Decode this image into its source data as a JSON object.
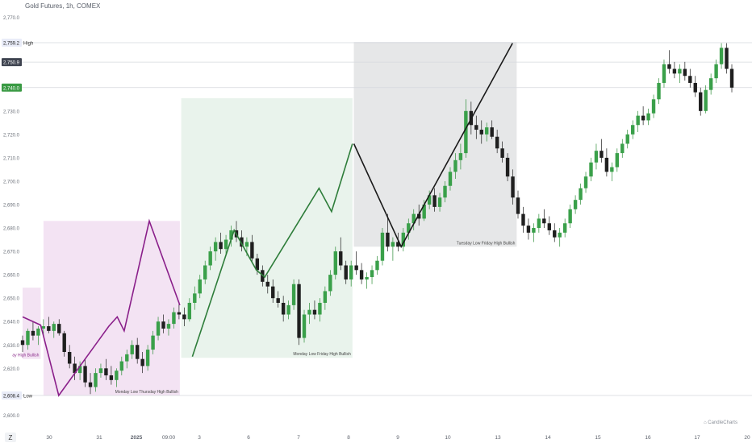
{
  "chart_data": {
    "type": "candlestick",
    "title": "Gold Futures, 1h, COMEX",
    "ylim": [
      2597,
      2773
    ],
    "y_ticks": [
      "2,600.0",
      "2,620.0",
      "2,630.0",
      "2,640.0",
      "2,650.0",
      "2,660.0",
      "2,670.0",
      "2,680.0",
      "2,690.0",
      "2,700.0",
      "2,710.0",
      "2,720.0",
      "2,730.0",
      "2,740.0",
      "2,770.0"
    ],
    "x_ticks": [
      "30",
      "31",
      "2025",
      "09:00",
      "3",
      "6",
      "7",
      "8",
      "9",
      "10",
      "13",
      "14",
      "15",
      "16",
      "17",
      "20"
    ],
    "price_markers": [
      {
        "value": 2759.2,
        "label": "2,759.2",
        "tag": "High",
        "bg": "#e9ecf8",
        "fg": "#222222"
      },
      {
        "value": 2750.9,
        "label": "2,750.9",
        "tag": "",
        "bg": "#3f4450",
        "fg": "#ffffff"
      },
      {
        "value": 2740.0,
        "label": "2,740.0",
        "tag": "",
        "bg": "#3a9a44",
        "fg": "#ffffff"
      },
      {
        "value": 2608.4,
        "label": "2,608.4",
        "tag": "Low",
        "bg": "#e9ecf8",
        "fg": "#222222"
      }
    ],
    "zones": [
      {
        "label": "ay High Bullish",
        "x_from": 0,
        "x_to": 1.3,
        "y_from": 2654.5,
        "y_to": 2624,
        "fill": "#f3e3f3",
        "fg": "#8a2b8a"
      },
      {
        "label": "Monday Low Thursday High Bullish",
        "x_from": 1.5,
        "x_to": 11.3,
        "y_from": 2683,
        "y_to": 2608.4,
        "fill": "#f3e3f3",
        "fg": "#444444"
      },
      {
        "label": "Monday Low Friday High Bullish",
        "x_from": 11.4,
        "x_to": 23.7,
        "y_from": 2735.5,
        "y_to": 2624.5,
        "fill": "#e9f3ec",
        "fg": "#444444"
      },
      {
        "label": "Tuesday Low Friday High Bullish",
        "x_from": 23.8,
        "x_to": 35.5,
        "y_from": 2759.5,
        "y_to": 2672,
        "fill": "#e6e7e8",
        "fg": "#444444"
      }
    ],
    "series": [
      {
        "name": "",
        "color": "#8a1f8a",
        "points": [
          [
            0,
            2642
          ],
          [
            1.3,
            2638.5
          ],
          [
            2.6,
            2608.4
          ],
          [
            6.2,
            2638
          ],
          [
            6.8,
            2642
          ],
          [
            7.3,
            2636
          ],
          [
            9.1,
            2683
          ],
          [
            11.3,
            2647
          ]
        ]
      },
      {
        "name": "",
        "color": "#2e7d3a",
        "points": [
          [
            12.2,
            2625
          ],
          [
            15.2,
            2679
          ],
          [
            16.8,
            2662
          ],
          [
            17.4,
            2659
          ],
          [
            21.3,
            2697
          ],
          [
            22.2,
            2687
          ],
          [
            23.7,
            2716
          ]
        ]
      },
      {
        "name": "",
        "color": "#1a1a1a",
        "points": [
          [
            23.8,
            2716
          ],
          [
            27.2,
            2672
          ],
          [
            35.2,
            2759
          ]
        ]
      }
    ],
    "candles": [
      [
        2632,
        2634,
        2627,
        2630
      ],
      [
        2630,
        2637,
        2628,
        2636
      ],
      [
        2636,
        2640,
        2632,
        2634
      ],
      [
        2634,
        2638,
        2630,
        2637
      ],
      [
        2637,
        2641,
        2634,
        2638
      ],
      [
        2638,
        2642,
        2635,
        2636
      ],
      [
        2636,
        2640,
        2633,
        2639
      ],
      [
        2639,
        2641,
        2634,
        2635
      ],
      [
        2635,
        2636,
        2625,
        2627
      ],
      [
        2627,
        2630,
        2620,
        2622
      ],
      [
        2622,
        2625,
        2615,
        2618
      ],
      [
        2618,
        2623,
        2615,
        2621
      ],
      [
        2621,
        2624,
        2612,
        2614
      ],
      [
        2614,
        2618,
        2609,
        2612
      ],
      [
        2612,
        2620,
        2610,
        2618
      ],
      [
        2618,
        2622,
        2616,
        2620
      ],
      [
        2620,
        2624,
        2615,
        2617
      ],
      [
        2617,
        2621,
        2613,
        2615
      ],
      [
        2615,
        2620,
        2612,
        2619
      ],
      [
        2619,
        2625,
        2617,
        2623
      ],
      [
        2623,
        2628,
        2620,
        2626
      ],
      [
        2626,
        2632,
        2624,
        2630
      ],
      [
        2630,
        2633,
        2622,
        2624
      ],
      [
        2624,
        2627,
        2618,
        2621
      ],
      [
        2621,
        2630,
        2619,
        2628
      ],
      [
        2628,
        2636,
        2626,
        2634
      ],
      [
        2634,
        2642,
        2632,
        2640
      ],
      [
        2640,
        2643,
        2635,
        2637
      ],
      [
        2637,
        2641,
        2634,
        2639
      ],
      [
        2639,
        2646,
        2637,
        2644
      ],
      [
        2644,
        2648,
        2641,
        2643
      ],
      [
        2643,
        2646,
        2638,
        2641
      ],
      [
        2641,
        2650,
        2640,
        2648
      ],
      [
        2648,
        2655,
        2645,
        2652
      ],
      [
        2652,
        2660,
        2650,
        2658
      ],
      [
        2658,
        2666,
        2656,
        2664
      ],
      [
        2664,
        2672,
        2662,
        2670
      ],
      [
        2670,
        2676,
        2666,
        2674
      ],
      [
        2674,
        2678,
        2669,
        2671
      ],
      [
        2671,
        2677,
        2669,
        2675
      ],
      [
        2675,
        2681,
        2672,
        2679
      ],
      [
        2679,
        2683,
        2674,
        2676
      ],
      [
        2676,
        2679,
        2670,
        2672
      ],
      [
        2672,
        2676,
        2668,
        2674
      ],
      [
        2674,
        2677,
        2665,
        2667
      ],
      [
        2667,
        2669,
        2660,
        2662
      ],
      [
        2662,
        2664,
        2655,
        2657
      ],
      [
        2657,
        2660,
        2652,
        2655
      ],
      [
        2655,
        2658,
        2648,
        2650
      ],
      [
        2650,
        2653,
        2646,
        2648
      ],
      [
        2648,
        2651,
        2640,
        2643
      ],
      [
        2643,
        2649,
        2641,
        2647
      ],
      [
        2647,
        2658,
        2645,
        2656
      ],
      [
        2656,
        2658,
        2630,
        2633
      ],
      [
        2633,
        2645,
        2631,
        2643
      ],
      [
        2643,
        2648,
        2639,
        2645
      ],
      [
        2645,
        2649,
        2641,
        2643
      ],
      [
        2643,
        2650,
        2640,
        2648
      ],
      [
        2648,
        2655,
        2645,
        2653
      ],
      [
        2653,
        2662,
        2651,
        2660
      ],
      [
        2660,
        2672,
        2658,
        2670
      ],
      [
        2670,
        2676,
        2662,
        2664
      ],
      [
        2664,
        2666,
        2656,
        2658
      ],
      [
        2658,
        2666,
        2655,
        2664
      ],
      [
        2664,
        2670,
        2660,
        2662
      ],
      [
        2662,
        2665,
        2656,
        2658
      ],
      [
        2658,
        2661,
        2654,
        2659
      ],
      [
        2659,
        2664,
        2656,
        2662
      ],
      [
        2662,
        2668,
        2660,
        2666
      ],
      [
        2666,
        2680,
        2664,
        2678
      ],
      [
        2678,
        2686,
        2670,
        2672
      ],
      [
        2672,
        2676,
        2666,
        2674
      ],
      [
        2674,
        2678,
        2670,
        2672
      ],
      [
        2672,
        2680,
        2670,
        2678
      ],
      [
        2678,
        2684,
        2675,
        2682
      ],
      [
        2682,
        2688,
        2679,
        2686
      ],
      [
        2686,
        2690,
        2681,
        2684
      ],
      [
        2684,
        2692,
        2683,
        2690
      ],
      [
        2690,
        2696,
        2688,
        2694
      ],
      [
        2694,
        2697,
        2687,
        2689
      ],
      [
        2689,
        2695,
        2687,
        2693
      ],
      [
        2693,
        2700,
        2691,
        2698
      ],
      [
        2698,
        2706,
        2696,
        2704
      ],
      [
        2704,
        2712,
        2701,
        2709
      ],
      [
        2709,
        2716,
        2705,
        2712
      ],
      [
        2712,
        2735,
        2710,
        2730
      ],
      [
        2730,
        2734,
        2720,
        2724
      ],
      [
        2724,
        2728,
        2718,
        2722
      ],
      [
        2722,
        2726,
        2716,
        2720
      ],
      [
        2720,
        2725,
        2717,
        2723
      ],
      [
        2723,
        2726,
        2718,
        2719
      ],
      [
        2719,
        2722,
        2712,
        2714
      ],
      [
        2714,
        2717,
        2708,
        2710
      ],
      [
        2710,
        2712,
        2700,
        2702
      ],
      [
        2702,
        2705,
        2690,
        2693
      ],
      [
        2693,
        2696,
        2684,
        2686
      ],
      [
        2686,
        2689,
        2678,
        2681
      ],
      [
        2681,
        2684,
        2675,
        2678
      ],
      [
        2678,
        2682,
        2674,
        2680
      ],
      [
        2680,
        2686,
        2678,
        2684
      ],
      [
        2684,
        2688,
        2680,
        2682
      ],
      [
        2682,
        2685,
        2677,
        2679
      ],
      [
        2679,
        2682,
        2674,
        2676
      ],
      [
        2676,
        2680,
        2672,
        2678
      ],
      [
        2678,
        2684,
        2676,
        2682
      ],
      [
        2682,
        2690,
        2680,
        2688
      ],
      [
        2688,
        2694,
        2686,
        2692
      ],
      [
        2692,
        2699,
        2690,
        2697
      ],
      [
        2697,
        2704,
        2695,
        2702
      ],
      [
        2702,
        2710,
        2700,
        2708
      ],
      [
        2708,
        2716,
        2705,
        2713
      ],
      [
        2713,
        2718,
        2708,
        2710
      ],
      [
        2710,
        2714,
        2702,
        2704
      ],
      [
        2704,
        2708,
        2700,
        2706
      ],
      [
        2706,
        2714,
        2704,
        2712
      ],
      [
        2712,
        2718,
        2710,
        2716
      ],
      [
        2716,
        2722,
        2714,
        2720
      ],
      [
        2720,
        2726,
        2718,
        2724
      ],
      [
        2724,
        2730,
        2721,
        2728
      ],
      [
        2728,
        2732,
        2724,
        2726
      ],
      [
        2726,
        2731,
        2724,
        2729
      ],
      [
        2729,
        2737,
        2727,
        2735
      ],
      [
        2735,
        2744,
        2733,
        2742
      ],
      [
        2742,
        2752,
        2740,
        2750
      ],
      [
        2750,
        2756,
        2746,
        2748
      ],
      [
        2748,
        2751,
        2744,
        2746
      ],
      [
        2746,
        2750,
        2742,
        2748
      ],
      [
        2748,
        2751,
        2743,
        2745
      ],
      [
        2745,
        2748,
        2740,
        2742
      ],
      [
        2742,
        2745,
        2736,
        2738
      ],
      [
        2738,
        2740,
        2728,
        2730
      ],
      [
        2730,
        2741,
        2729,
        2739
      ],
      [
        2739,
        2746,
        2737,
        2744
      ],
      [
        2744,
        2752,
        2742,
        2750
      ],
      [
        2750,
        2759,
        2748,
        2757
      ],
      [
        2757,
        2759,
        2746,
        2748
      ],
      [
        2748,
        2750,
        2738,
        2740
      ]
    ]
  }
}
